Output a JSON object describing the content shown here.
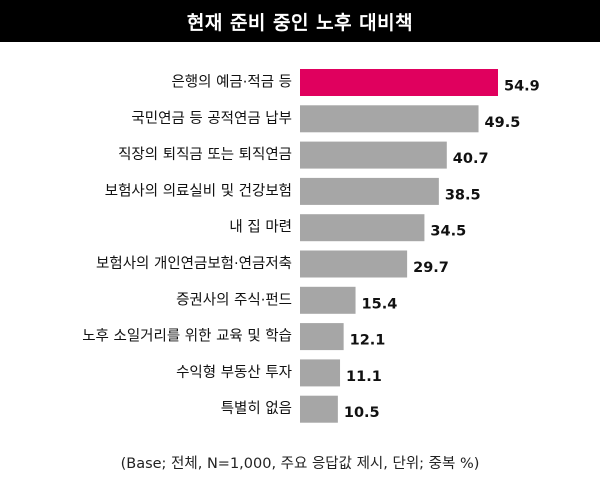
{
  "chart_data": {
    "type": "bar",
    "orientation": "horizontal",
    "title": "현재 준비 중인 노후 대비책",
    "categories": [
      "은행의 예금·적금 등",
      "국민연금 등 공적연금 납부",
      "직장의 퇴직금 또는 퇴직연금",
      "보험사의 의료실비 및 건강보험",
      "내 집 마련",
      "보험사의 개인연금보험·연금저축",
      "증권사의 주식·펀드",
      "노후 소일거리를 위한 교육 및 학습",
      "수익형 부동산 투자",
      "특별히 없음"
    ],
    "values": [
      54.9,
      49.5,
      40.7,
      38.5,
      34.5,
      29.7,
      15.4,
      12.1,
      11.1,
      10.5
    ],
    "value_labels": [
      "54.9",
      "49.5",
      "40.7",
      "38.5",
      "34.5",
      "29.7",
      "15.4",
      "12.1",
      "11.1",
      "10.5"
    ],
    "highlight_index": 0,
    "colors": {
      "highlight": "#e0005e",
      "default": "#a6a6a6"
    },
    "xlim": [
      0,
      54.9
    ],
    "grid": false,
    "legend": "none"
  },
  "footnote": "(Base; 전체, N=1,000, 주요 응답값 제시, 단위; 중복 %)"
}
